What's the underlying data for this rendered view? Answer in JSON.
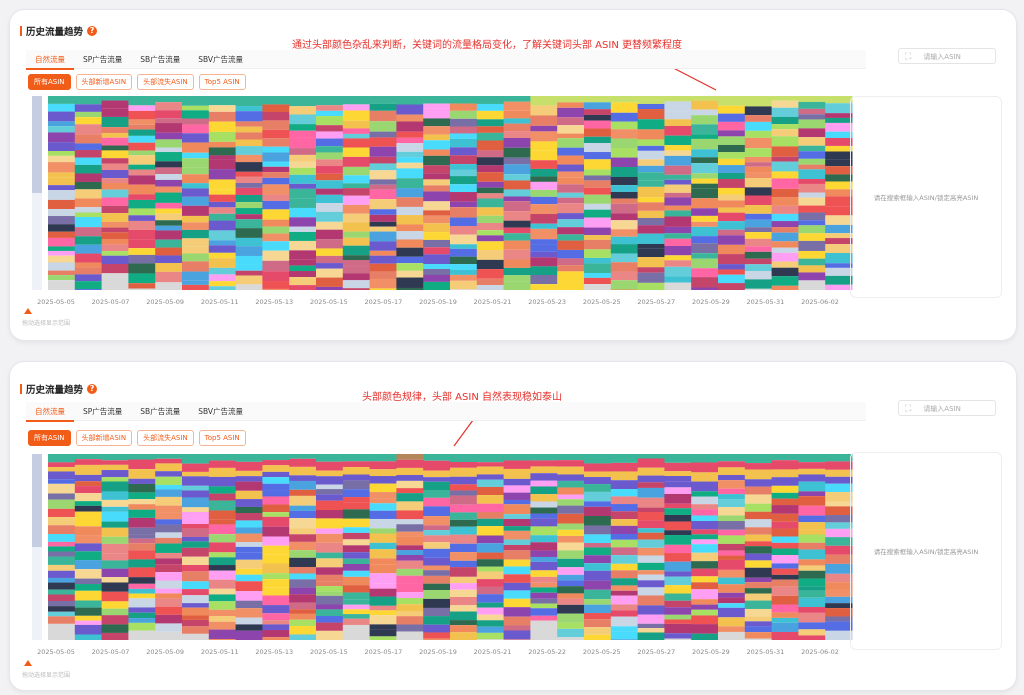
{
  "colors": {
    "accent": "#f25c19",
    "annotation": "#e5302b"
  },
  "panels": [
    {
      "title": "历史流量趋势",
      "annotation": "通过头部颜色杂乱来判断，关键词的流量格局变化，了解关键词头部 ASIN 更替频繁程度",
      "tabs": [
        "自然流量",
        "SP广告流量",
        "SB广告流量",
        "SBV广告流量"
      ],
      "active_tab": "自然流量",
      "search_placeholder": "请输入ASIN",
      "filters": [
        "所有ASIN",
        "头部新增ASIN",
        "头部流失ASIN",
        "Top5 ASIN"
      ],
      "side_hint": "请在搜索框输入ASIN/锁定高亮ASIN",
      "drag_hint": "拖动选择显示范围",
      "x_ticks": [
        "2025-05-05",
        "2025-05-07",
        "2025-05-09",
        "2025-05-11",
        "2025-05-13",
        "2025-05-15",
        "2025-05-17",
        "2025-05-19",
        "2025-05-21",
        "2025-05-23",
        "2025-05-25",
        "2025-05-27",
        "2025-05-29",
        "2025-05-31",
        "2025-06-02"
      ]
    },
    {
      "title": "历史流量趋势",
      "annotation": "头部颜色规律，头部 ASIN 自然表现稳如泰山",
      "tabs": [
        "自然流量",
        "SP广告流量",
        "SB广告流量",
        "SBV广告流量"
      ],
      "active_tab": "自然流量",
      "search_placeholder": "请输入ASIN",
      "filters": [
        "所有ASIN",
        "头部新增ASIN",
        "头部流失ASIN",
        "Top5 ASIN"
      ],
      "side_hint": "请在搜索框输入ASIN/锁定高亮ASIN",
      "drag_hint": "拖动选择显示范围",
      "x_ticks": [
        "2025-05-05",
        "2025-05-07",
        "2025-05-09",
        "2025-05-11",
        "2025-05-13",
        "2025-05-15",
        "2025-05-17",
        "2025-05-19",
        "2025-05-21",
        "2025-05-22",
        "2025-05-25",
        "2025-05-27",
        "2025-05-29",
        "2025-05-31",
        "2025-06-02"
      ]
    }
  ],
  "chart_data": [
    {
      "type": "area",
      "title": "",
      "xlabel": "",
      "ylabel": "",
      "x": [
        "2025-05-05",
        "2025-05-07",
        "2025-05-09",
        "2025-05-11",
        "2025-05-13",
        "2025-05-15",
        "2025-05-17",
        "2025-05-19",
        "2025-05-21",
        "2025-05-23",
        "2025-05-25",
        "2025-05-27",
        "2025-05-29",
        "2025-05-31",
        "2025-06-02"
      ],
      "stacked": true,
      "normalized": true,
      "head_stability": "volatile"
    },
    {
      "type": "area",
      "title": "",
      "xlabel": "",
      "ylabel": "",
      "x": [
        "2025-05-05",
        "2025-05-07",
        "2025-05-09",
        "2025-05-11",
        "2025-05-13",
        "2025-05-15",
        "2025-05-17",
        "2025-05-19",
        "2025-05-21",
        "2025-05-22",
        "2025-05-25",
        "2025-05-27",
        "2025-05-29",
        "2025-05-31",
        "2025-06-02"
      ],
      "stacked": true,
      "normalized": true,
      "head_stability": "stable"
    }
  ]
}
